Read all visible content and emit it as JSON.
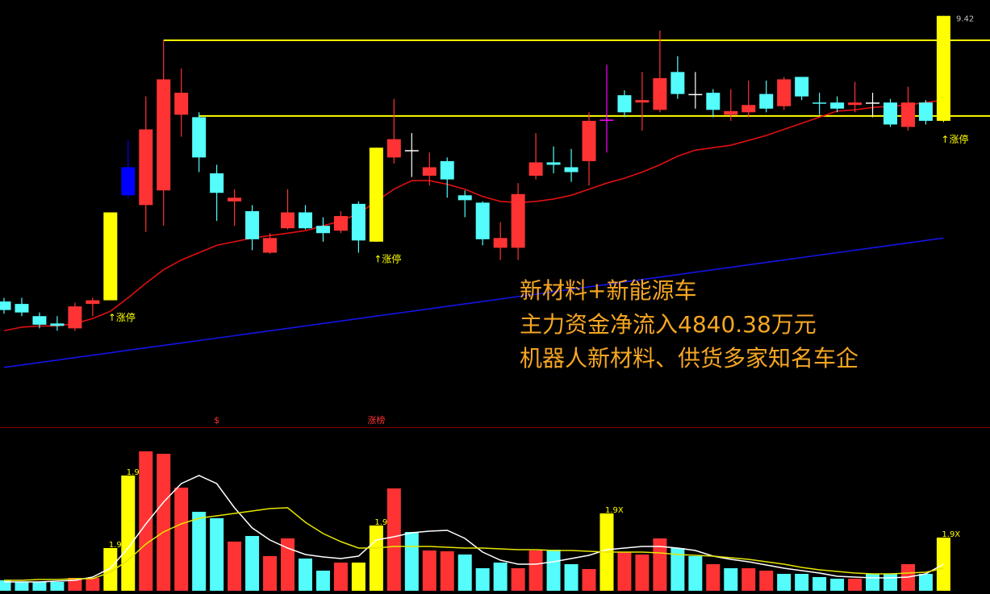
{
  "chart_data": [
    {
      "type": "candlestick",
      "open": [
        7.08,
        7.06,
        6.96,
        6.9,
        6.86,
        7.06,
        7.09,
        8.18,
        7.87,
        7.99,
        8.61,
        8.59,
        8.13,
        7.9,
        7.82,
        7.48,
        7.68,
        7.81,
        7.7,
        7.66,
        7.88,
        7.57,
        8.26,
        8.32,
        8.11,
        8.23,
        7.95,
        7.89,
        7.52,
        7.52,
        8.11,
        8.22,
        8.18,
        8.23,
        8.57,
        8.77,
        8.71,
        8.65,
        8.96,
        8.78,
        8.79,
        8.61,
        8.63,
        8.78,
        8.68,
        8.92,
        8.71,
        8.71,
        8.69,
        8.71,
        8.71,
        8.51,
        8.71,
        8.56
      ],
      "close": [
        7.01,
        6.99,
        6.89,
        6.88,
        7.04,
        7.09,
        7.81,
        7.95,
        8.49,
        8.9,
        8.79,
        8.26,
        7.97,
        7.93,
        7.59,
        7.6,
        7.81,
        7.68,
        7.64,
        7.78,
        7.58,
        8.34,
        8.41,
        8.32,
        8.18,
        8.08,
        7.91,
        7.59,
        7.6,
        7.96,
        8.22,
        8.2,
        8.14,
        8.56,
        8.57,
        8.63,
        8.73,
        8.91,
        8.78,
        8.78,
        8.65,
        8.64,
        8.69,
        8.66,
        8.9,
        8.76,
        8.71,
        8.66,
        8.71,
        8.71,
        8.53,
        8.71,
        8.56,
        9.42
      ],
      "high": [
        7.11,
        7.11,
        6.99,
        6.96,
        7.07,
        7.11,
        7.81,
        8.4,
        8.76,
        9.22,
        8.99,
        8.63,
        8.2,
        8.0,
        7.87,
        7.64,
        8.0,
        7.87,
        7.77,
        7.82,
        7.9,
        8.34,
        8.74,
        8.46,
        8.3,
        8.26,
        7.99,
        7.9,
        7.73,
        8.05,
        8.46,
        8.35,
        8.33,
        8.63,
        9.02,
        8.81,
        8.96,
        9.3,
        9.09,
        8.96,
        8.82,
        8.82,
        8.89,
        8.89,
        8.92,
        8.92,
        8.79,
        8.76,
        8.88,
        8.79,
        8.74,
        8.84,
        8.73,
        9.42
      ],
      "low": [
        6.98,
        6.96,
        6.86,
        6.84,
        6.84,
        6.96,
        7.09,
        7.93,
        7.65,
        7.7,
        8.43,
        8.14,
        7.74,
        7.7,
        7.5,
        7.47,
        7.67,
        7.67,
        7.57,
        7.64,
        7.48,
        7.57,
        8.21,
        8.1,
        8.03,
        7.93,
        7.77,
        7.54,
        7.42,
        7.42,
        8.08,
        8.13,
        8.06,
        8.03,
        8.3,
        8.59,
        8.48,
        8.63,
        8.74,
        8.66,
        8.59,
        8.56,
        8.59,
        8.63,
        8.65,
        8.73,
        8.61,
        8.63,
        8.63,
        8.59,
        8.51,
        8.48,
        8.53,
        8.55
      ],
      "colors": [
        "#54fcfc",
        "#54fcfc",
        "#54fcfc",
        "#54fcfc",
        "#ff3333",
        "#ff3333",
        "#ffff00",
        "#0000ff",
        "#ff3333",
        "#ff3333",
        "#ff3333",
        "#54fcfc",
        "#54fcfc",
        "#ff3333",
        "#54fcfc",
        "#ff3333",
        "#ff3333",
        "#54fcfc",
        "#54fcfc",
        "#ff3333",
        "#54fcfc",
        "#ffff00",
        "#ff3333",
        "#ffffff",
        "#ff3333",
        "#54fcfc",
        "#54fcfc",
        "#54fcfc",
        "#ff3333",
        "#ff3333",
        "#ff3333",
        "#54fcfc",
        "#54fcfc",
        "#ff3333",
        "#ff00ff",
        "#54fcfc",
        "#ff3333",
        "#ff3333",
        "#54fcfc",
        "#ffffff",
        "#54fcfc",
        "#ff3333",
        "#ff3333",
        "#54fcfc",
        "#ff3333",
        "#54fcfc",
        "#54fcfc",
        "#54fcfc",
        "#ff3333",
        "#ffffff",
        "#54fcfc",
        "#ff3333",
        "#54fcfc",
        "#ffff00"
      ],
      "ylim": [
        6.09,
        9.55
      ],
      "lines": [
        {
          "color": "#e01010",
          "values": [
            6.84,
            6.87,
            6.88,
            6.88,
            6.9,
            6.94,
            7.0,
            7.11,
            7.23,
            7.34,
            7.42,
            7.48,
            7.54,
            7.57,
            7.6,
            7.62,
            7.64,
            7.66,
            7.7,
            7.74,
            7.8,
            7.9,
            8.0,
            8.07,
            8.07,
            8.04,
            8.0,
            7.94,
            7.9,
            7.89,
            7.9,
            7.92,
            7.95,
            8.0,
            8.05,
            8.09,
            8.14,
            8.2,
            8.27,
            8.32,
            8.34,
            8.36,
            8.4,
            8.44,
            8.49,
            8.54,
            8.59,
            8.64,
            8.65,
            8.67,
            8.68,
            8.69,
            8.71,
            8.73
          ]
        },
        {
          "color": "#1414e6",
          "values": [
            6.54,
            6.56,
            6.58,
            6.6,
            6.62,
            6.64,
            6.66,
            6.68,
            6.7,
            6.72,
            6.74,
            6.76,
            6.78,
            6.8,
            6.82,
            6.84,
            6.86,
            6.88,
            6.9,
            6.92,
            6.94,
            6.96,
            6.98,
            7.0,
            7.02,
            7.04,
            7.06,
            7.08,
            7.1,
            7.12,
            7.14,
            7.16,
            7.18,
            7.2,
            7.22,
            7.24,
            7.26,
            7.28,
            7.3,
            7.32,
            7.34,
            7.36,
            7.38,
            7.4,
            7.42,
            7.44,
            7.46,
            7.48,
            7.5,
            7.52,
            7.54,
            7.56,
            7.58,
            7.6
          ]
        }
      ],
      "hlines": [
        {
          "value": 9.22,
          "from": 9,
          "color": "#ffff00"
        },
        {
          "value": 8.6,
          "from": 11,
          "color": "#ffff00"
        }
      ],
      "max_label": 9.42,
      "limit_labels": [
        null,
        null,
        null,
        null,
        null,
        null,
        "↑涨停",
        null,
        null,
        null,
        null,
        null,
        null,
        null,
        null,
        null,
        null,
        null,
        null,
        null,
        null,
        "↑涨停",
        null,
        null,
        null,
        null,
        null,
        null,
        null,
        null,
        null,
        null,
        null,
        null,
        null,
        null,
        null,
        null,
        null,
        null,
        null,
        null,
        null,
        null,
        null,
        null,
        null,
        null,
        null,
        null,
        null,
        null,
        null,
        "↑涨停"
      ],
      "signal_labels": [
        null,
        null,
        null,
        null,
        null,
        null,
        null,
        null,
        null,
        null,
        null,
        null,
        "$",
        null,
        null,
        null,
        null,
        null,
        null,
        null,
        null,
        "涨榜",
        null,
        null,
        null,
        null,
        null,
        null,
        null,
        null,
        null,
        null,
        null,
        null,
        null,
        null,
        null,
        null,
        null,
        null,
        null,
        null,
        null,
        null,
        null,
        null,
        null,
        null,
        null,
        null,
        null,
        null,
        null,
        null
      ],
      "annotations": [
        "新材料+新能源车",
        "主力资金净流入4840.38万元",
        "机器人新材料、供货多家知名车企"
      ],
      "annotation_color": "#f5a623"
    },
    {
      "type": "bar",
      "values": [
        6.5,
        5.5,
        5.5,
        5.5,
        8,
        8,
        26.5,
        71.5,
        86.5,
        85,
        64,
        49,
        45,
        30.5,
        34,
        21.5,
        32.5,
        20,
        12.5,
        17.5,
        17.5,
        40.5,
        63.5,
        36.5,
        25,
        24.5,
        22.5,
        14,
        17.5,
        14,
        25,
        25.5,
        16.5,
        13.5,
        48,
        24,
        22.5,
        32.5,
        26.5,
        21.5,
        16.5,
        14,
        14,
        12.5,
        10.5,
        10.5,
        8.5,
        7.5,
        7.5,
        10.5,
        10.5,
        16.5,
        10.5,
        33
      ],
      "colors": [
        "#54fcfc",
        "#54fcfc",
        "#54fcfc",
        "#54fcfc",
        "#ff3333",
        "#ff3333",
        "#ffff00",
        "#ffff00",
        "#ff3333",
        "#ff3333",
        "#ff3333",
        "#54fcfc",
        "#54fcfc",
        "#ff3333",
        "#54fcfc",
        "#ff3333",
        "#ff3333",
        "#54fcfc",
        "#54fcfc",
        "#ff3333",
        "#ffff00",
        "#ffff00",
        "#ff3333",
        "#54fcfc",
        "#ff3333",
        "#ff3333",
        "#54fcfc",
        "#54fcfc",
        "#54fcfc",
        "#ff3333",
        "#ff3333",
        "#54fcfc",
        "#54fcfc",
        "#ff3333",
        "#ffff00",
        "#ff3333",
        "#ff3333",
        "#ff3333",
        "#54fcfc",
        "#54fcfc",
        "#ff3333",
        "#54fcfc",
        "#ff3333",
        "#ff3333",
        "#54fcfc",
        "#54fcfc",
        "#54fcfc",
        "#54fcfc",
        "#ff3333",
        "#54fcfc",
        "#54fcfc",
        "#ff3333",
        "#54fcfc",
        "#ffff00"
      ],
      "ylim": [
        0,
        100
      ],
      "ratio_labels": [
        null,
        null,
        null,
        null,
        null,
        null,
        "1.9",
        "1.9X",
        null,
        null,
        null,
        null,
        null,
        null,
        null,
        null,
        null,
        null,
        null,
        null,
        null,
        "1.9X",
        null,
        null,
        null,
        null,
        null,
        null,
        null,
        null,
        null,
        null,
        null,
        null,
        "1.9X",
        null,
        null,
        null,
        null,
        null,
        null,
        null,
        null,
        null,
        null,
        null,
        null,
        null,
        null,
        null,
        null,
        null,
        null,
        "1.9X"
      ],
      "lines": [
        {
          "color": "#ffffff",
          "values": [
            5.5,
            5.5,
            5.5,
            6,
            6.5,
            8.5,
            14,
            26.5,
            41.5,
            55,
            66.5,
            71.5,
            66.5,
            51.5,
            39,
            31.5,
            26.5,
            22.5,
            21,
            20,
            21.5,
            31.5,
            33.5,
            36,
            37,
            37.5,
            32.5,
            24,
            19,
            16.5,
            16.5,
            18,
            20,
            22,
            25.5,
            26.5,
            27.5,
            27.5,
            26.5,
            25,
            21.5,
            19.5,
            18,
            16,
            14,
            12.5,
            11,
            9,
            8.5,
            8,
            8,
            8.5,
            10.5,
            16.5
          ]
        },
        {
          "color": "#e6e600",
          "values": [
            6.5,
            6.5,
            7,
            7,
            7.5,
            7.5,
            11.5,
            19,
            29,
            36.5,
            41.5,
            45,
            46.5,
            48,
            49.5,
            51,
            51.5,
            42.5,
            35.5,
            30.5,
            26.5,
            26.5,
            27.5,
            27.5,
            27.5,
            27,
            26.5,
            26.5,
            26,
            25.5,
            25.5,
            25,
            25,
            24.5,
            24,
            24,
            24,
            23.5,
            22.5,
            22,
            21.5,
            20.5,
            19.5,
            18,
            16.5,
            14.5,
            13,
            12,
            11,
            10.5,
            10.5,
            11,
            11.5,
            14
          ]
        }
      ]
    }
  ]
}
